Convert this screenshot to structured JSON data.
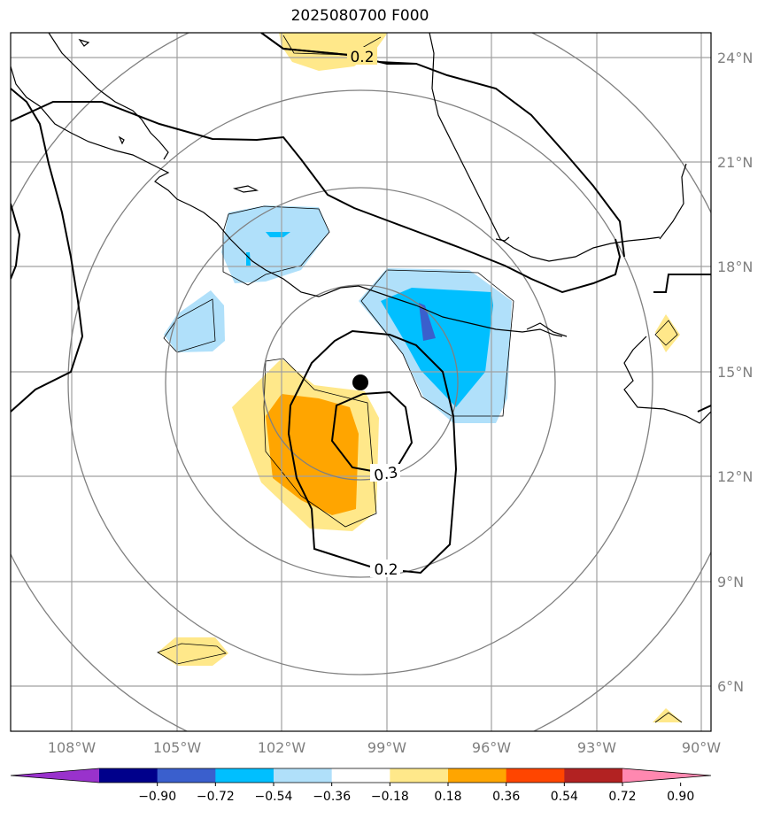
{
  "title": "2025080700 F000",
  "map": {
    "lon_labels": [
      "108°W",
      "105°W",
      "102°W",
      "99°W",
      "96°W",
      "93°W",
      "90°W"
    ],
    "lat_labels": [
      "24°N",
      "21°N",
      "18°N",
      "15°N",
      "12°N",
      "9°N",
      "6°N"
    ],
    "contour_labels": [
      "0.2",
      "0.3",
      "0.2"
    ],
    "colors": {
      "gridline": "#a0a0a0",
      "coast": "#000000",
      "range_ring": "#808080",
      "center_marker": "#000000"
    }
  },
  "colorbar": {
    "tick_labels": [
      "−0.90",
      "−0.72",
      "−0.54",
      "−0.36",
      "−0.18",
      "0.18",
      "0.36",
      "0.54",
      "0.72",
      "0.90"
    ],
    "colors": [
      "#9932cc",
      "#00008b",
      "#3a5fcd",
      "#00bfff",
      "#b0e0fa",
      "#ffffff",
      "#ffe88a",
      "#ffa500",
      "#ff4500",
      "#b22222",
      "#ff88b0"
    ]
  }
}
